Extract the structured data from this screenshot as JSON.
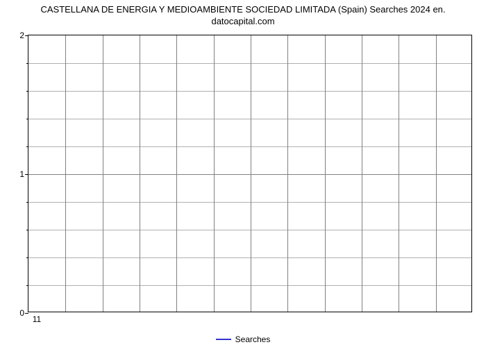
{
  "chart": {
    "type": "line",
    "title_line1": "CASTELLANA DE ENERGIA Y MEDIOAMBIENTE SOCIEDAD LIMITADA (Spain) Searches 2024 en.",
    "title_line2": "datocapital.com",
    "title_fontsize": 13,
    "background_color": "#ffffff",
    "border_color": "#000000",
    "grid_color": "#808080",
    "minor_grid_color": "#b0b0b0",
    "label_fontsize": 12,
    "ylim": [
      0,
      2
    ],
    "yticks": [
      0,
      1,
      2
    ],
    "minor_y_per_major": 5,
    "xlim": [
      1,
      12
    ],
    "xticks_shown": [
      11
    ],
    "x_grid_count": 12,
    "series": [
      {
        "name": "Searches",
        "color": "#3333cc",
        "line_width": 2,
        "values": []
      }
    ],
    "legend": {
      "position": "bottom-center",
      "label": "Searches",
      "swatch_color": "#3333cc"
    }
  }
}
